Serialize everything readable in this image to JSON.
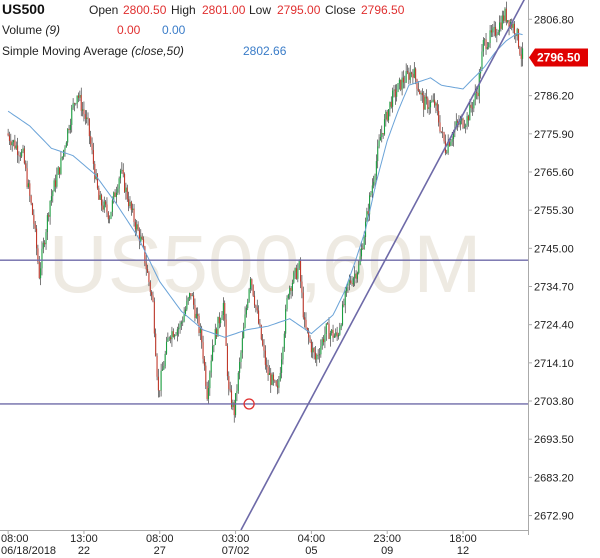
{
  "header": {
    "symbol": "US500",
    "open_label": "Open",
    "open_value": "2800.50",
    "high_label": "High",
    "high_value": "2801.00",
    "low_label": "Low",
    "low_value": "2795.00",
    "close_label": "Close",
    "close_value": "2796.50",
    "volume_label": "Volume (9)",
    "volume_v1": "0.00",
    "volume_v2": "0.00",
    "sma_label": "Simple Moving Average (close,50)",
    "sma_value": "2802.66"
  },
  "colors": {
    "up": "#1a9e3f",
    "down": "#c0392b",
    "sma": "#6aa3d8",
    "line": "#6e6aa8",
    "price_badge": "#e00000",
    "watermark": "#eeeae2",
    "ohlc_value": "#e03030",
    "vol_value": "#e03030",
    "sma_value": "#3a7cc8"
  },
  "chart_data": {
    "type": "candlestick",
    "watermark": "US500,60M",
    "y_ticks": [
      "2806.80",
      "2796.50",
      "2786.20",
      "2775.90",
      "2765.60",
      "2755.30",
      "2745.00",
      "2734.70",
      "2724.40",
      "2714.10",
      "2703.80",
      "2693.50",
      "2683.20",
      "2672.90"
    ],
    "ylim": [
      2669.0,
      2812.0
    ],
    "current_price": "2796.50",
    "x_ticks": [
      {
        "top": "08:00",
        "bottom": "06/18/2018",
        "x": 0
      },
      {
        "top": "13:00",
        "bottom": "22",
        "x": 14
      },
      {
        "top": "08:00",
        "bottom": "27",
        "x": 28
      },
      {
        "top": "03:00",
        "bottom": "07/02",
        "x": 42
      },
      {
        "top": "04:00",
        "bottom": "05",
        "x": 56
      },
      {
        "top": "23:00",
        "bottom": "09",
        "x": 70
      },
      {
        "top": "18:00",
        "bottom": "12",
        "x": 84
      }
    ],
    "x_range": [
      -1.5,
      96
    ],
    "anchors": [
      [
        0,
        2776
      ],
      [
        3,
        2770
      ],
      [
        5,
        2752
      ],
      [
        6,
        2738
      ],
      [
        8,
        2758
      ],
      [
        10,
        2768
      ],
      [
        12,
        2782
      ],
      [
        13,
        2787
      ],
      [
        15,
        2778
      ],
      [
        17,
        2758
      ],
      [
        19,
        2754
      ],
      [
        21,
        2766
      ],
      [
        23,
        2755
      ],
      [
        25,
        2746
      ],
      [
        27,
        2730
      ],
      [
        28,
        2706
      ],
      [
        30,
        2722
      ],
      [
        32,
        2724
      ],
      [
        34,
        2733
      ],
      [
        36,
        2720
      ],
      [
        37,
        2706
      ],
      [
        38,
        2719
      ],
      [
        40,
        2730
      ],
      [
        41,
        2706
      ],
      [
        42,
        2701
      ],
      [
        44,
        2726
      ],
      [
        45,
        2738
      ],
      [
        46,
        2729
      ],
      [
        48,
        2712
      ],
      [
        50,
        2706
      ],
      [
        52,
        2734
      ],
      [
        54,
        2740
      ],
      [
        55,
        2724
      ],
      [
        57,
        2715
      ],
      [
        59,
        2723
      ],
      [
        61,
        2721
      ],
      [
        63,
        2735
      ],
      [
        65,
        2740
      ],
      [
        67,
        2758
      ],
      [
        69,
        2775
      ],
      [
        71,
        2785
      ],
      [
        73,
        2790
      ],
      [
        75,
        2793
      ],
      [
        77,
        2784
      ],
      [
        79,
        2784
      ],
      [
        81,
        2772
      ],
      [
        83,
        2778
      ],
      [
        85,
        2780
      ],
      [
        87,
        2788
      ],
      [
        88,
        2800
      ],
      [
        90,
        2803
      ],
      [
        92,
        2808
      ],
      [
        94,
        2804
      ],
      [
        95,
        2797
      ]
    ],
    "sma_anchors": [
      [
        0,
        2782
      ],
      [
        4,
        2778
      ],
      [
        8,
        2772
      ],
      [
        12,
        2770
      ],
      [
        16,
        2765
      ],
      [
        20,
        2757
      ],
      [
        24,
        2748
      ],
      [
        28,
        2736
      ],
      [
        32,
        2728
      ],
      [
        36,
        2723
      ],
      [
        40,
        2721
      ],
      [
        44,
        2723
      ],
      [
        48,
        2724
      ],
      [
        52,
        2726
      ],
      [
        56,
        2722
      ],
      [
        60,
        2727
      ],
      [
        62,
        2733
      ],
      [
        64,
        2741
      ],
      [
        66,
        2750
      ],
      [
        68,
        2763
      ],
      [
        70,
        2774
      ],
      [
        72,
        2782
      ],
      [
        74,
        2789
      ],
      [
        76,
        2790
      ],
      [
        78,
        2791
      ],
      [
        80,
        2789
      ],
      [
        84,
        2788
      ],
      [
        86,
        2791
      ],
      [
        88,
        2794
      ],
      [
        90,
        2798
      ],
      [
        92,
        2801
      ],
      [
        94,
        2803
      ],
      [
        95,
        2802.66
      ]
    ],
    "lines": [
      {
        "name": "support",
        "kind": "horizontal",
        "y": 2703.0
      },
      {
        "name": "resistance",
        "kind": "horizontal",
        "y": 2741.8
      },
      {
        "name": "trendline",
        "kind": "segment",
        "x1": 43,
        "y1": 2669.0,
        "x2": 96,
        "y2": 2814.0
      }
    ],
    "marker": {
      "x": 44.5,
      "y": 2703.0
    }
  }
}
